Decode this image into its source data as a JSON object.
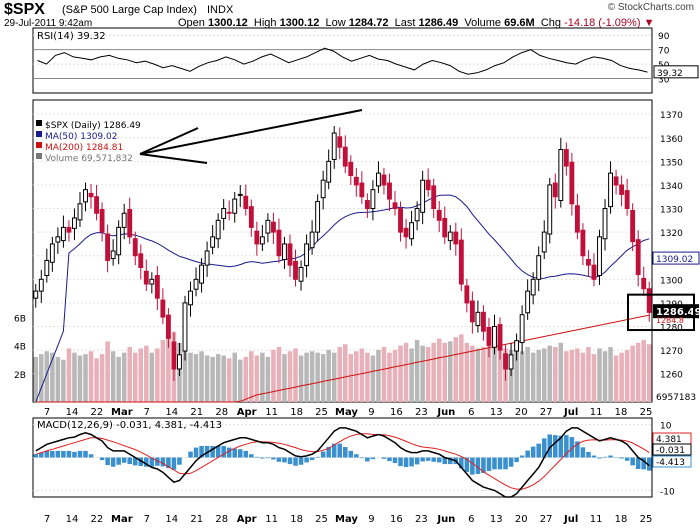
{
  "header": {
    "symbol": "$SPX",
    "name": "(S&P 500 Large Cap Index)",
    "exchange": "INDX",
    "datetime": "29-Jul-2011 9:42am",
    "brand": "© StockCharts.com",
    "open_label": "Open",
    "open": "1300.12",
    "high_label": "High",
    "high": "1300.12",
    "low_label": "Low",
    "low": "1284.72",
    "last_label": "Last",
    "last": "1286.49",
    "volume_label": "Volume",
    "volume": "69.6M",
    "chg_label": "Chg",
    "chg": "-14.18 (-1.09%)"
  },
  "colors": {
    "up": "#000000",
    "down": "#c0103a",
    "ma50": "#1a1a8c",
    "ma200": "#d01010",
    "vol_up": "#b8b8b8",
    "vol_down": "#e8b0b8",
    "macd_hist": "#3a8fcf",
    "signal": "#e02020"
  },
  "chart_data": [
    {
      "type": "line",
      "panel": "RSI",
      "title": "RSI(14) 39.32",
      "y_ticks": [
        30,
        50,
        70,
        90
      ],
      "ylim": [
        10,
        100
      ],
      "last_value_label": "39.32",
      "series": [
        {
          "name": "RSI(14)",
          "values": [
            55,
            50,
            62,
            66,
            60,
            58,
            56,
            60,
            62,
            58,
            56,
            52,
            54,
            50,
            45,
            48,
            44,
            40,
            47,
            52,
            55,
            60,
            56,
            50,
            54,
            60,
            64,
            58,
            52,
            56,
            60,
            66,
            72,
            68,
            60,
            54,
            58,
            62,
            57,
            55,
            50,
            46,
            42,
            50,
            55,
            52,
            48,
            40,
            36,
            38,
            42,
            48,
            52,
            60,
            66,
            70,
            62,
            58,
            55,
            52,
            50,
            56,
            60,
            58,
            55,
            48,
            44,
            42,
            39
          ]
        }
      ]
    },
    {
      "type": "candlestick",
      "panel": "Price",
      "legend": [
        "$SPX (Daily) 1286.49",
        "MA(50) 1309.02",
        "MA(200) 1284.81",
        "Volume 69,571,832"
      ],
      "ylim": [
        1248,
        1376
      ],
      "y_ticks": [
        1260,
        1270,
        1280,
        1290,
        1300,
        1310,
        1320,
        1330,
        1340,
        1350,
        1360,
        1370
      ],
      "last_price_label": "1286.49",
      "ma50_label": "1309.02",
      "ma200_label": "1284.8",
      "x_labels": [
        "7",
        "14",
        "22",
        "Mar",
        "7",
        "14",
        "21",
        "28",
        "Apr",
        "11",
        "18",
        "25",
        "May",
        "9",
        "16",
        "23",
        "Jun",
        "6",
        "13",
        "20",
        "27",
        "Jul",
        "11",
        "18",
        "25"
      ],
      "close": [
        1295,
        1300,
        1308,
        1315,
        1318,
        1322,
        1320,
        1326,
        1332,
        1338,
        1335,
        1328,
        1320,
        1308,
        1312,
        1322,
        1328,
        1318,
        1310,
        1305,
        1298,
        1300,
        1292,
        1284,
        1275,
        1262,
        1268,
        1290,
        1295,
        1300,
        1306,
        1312,
        1318,
        1325,
        1330,
        1328,
        1334,
        1336,
        1330,
        1322,
        1315,
        1318,
        1325,
        1320,
        1310,
        1315,
        1306,
        1300,
        1305,
        1315,
        1320,
        1333,
        1342,
        1350,
        1362,
        1356,
        1348,
        1344,
        1340,
        1335,
        1330,
        1338,
        1345,
        1340,
        1334,
        1330,
        1320,
        1318,
        1324,
        1330,
        1342,
        1338,
        1330,
        1325,
        1318,
        1320,
        1315,
        1298,
        1290,
        1282,
        1286,
        1278,
        1272,
        1280,
        1270,
        1262,
        1268,
        1274,
        1285,
        1295,
        1300,
        1310,
        1320,
        1340,
        1335,
        1355,
        1348,
        1332,
        1320,
        1310,
        1306,
        1300,
        1318,
        1330,
        1345,
        1340,
        1336,
        1330,
        1316,
        1302,
        1296,
        1286
      ],
      "volume_scale_labels": [
        "2B",
        "4B",
        "6B"
      ],
      "volume_last_label": "6957183",
      "volume_billions": [
        3.2,
        3.4,
        3.6,
        3.5,
        3.2,
        3.0,
        3.8,
        3.5,
        3.3,
        3.4,
        3.6,
        3.1,
        3.4,
        4.3,
        3.6,
        3.2,
        3.5,
        3.9,
        3.5,
        3.8,
        4.0,
        3.5,
        3.8,
        4.4,
        4.8,
        5.0,
        4.2,
        3.7,
        3.5,
        3.4,
        3.6,
        3.3,
        3.2,
        3.4,
        3.3,
        3.1,
        3.5,
        3.0,
        3.2,
        3.6,
        3.3,
        3.5,
        3.2,
        3.7,
        3.9,
        3.4,
        3.6,
        3.8,
        3.3,
        3.5,
        3.6,
        3.5,
        3.4,
        3.7,
        3.5,
        3.9,
        4.1,
        3.4,
        3.6,
        3.8,
        3.5,
        3.3,
        3.7,
        3.9,
        3.5,
        3.7,
        4.0,
        4.2,
        3.8,
        4.4,
        4.0,
        3.9,
        4.2,
        4.5,
        4.2,
        4.3,
        4.6,
        4.8,
        4.2,
        4.0,
        3.8,
        3.9,
        4.1,
        4.3,
        4.6,
        3.8,
        3.7,
        4.0,
        3.6,
        3.9,
        3.5,
        3.7,
        3.8,
        4.0,
        3.9,
        4.2,
        3.6,
        3.7,
        3.8,
        3.5,
        3.9,
        3.4,
        3.8,
        3.6,
        3.9,
        3.3,
        3.5,
        3.7,
        4.0,
        4.2,
        4.4,
        4.1
      ]
    },
    {
      "type": "line",
      "panel": "MACD",
      "title": "MACD(12,26,9) -0.031, 4.381, -4.413",
      "ylim": [
        -12,
        12
      ],
      "y_ticks": [
        -10,
        0,
        10
      ],
      "value_labels": [
        "4.381",
        "-0.031",
        "-4.413"
      ],
      "series": [
        {
          "name": "MACD",
          "values": [
            2,
            3,
            4,
            4.5,
            5,
            5.5,
            6,
            6.2,
            7,
            7.5,
            7,
            6,
            5,
            3,
            2,
            2,
            2,
            1,
            0,
            -1,
            -2,
            -3,
            -3.5,
            -4.5,
            -6,
            -7.5,
            -7,
            -5,
            -3,
            -1,
            0.5,
            1.5,
            2.5,
            3.5,
            4.5,
            5,
            5.5,
            6,
            6,
            5.5,
            5,
            4.5,
            4.5,
            4,
            3,
            2.5,
            1.5,
            0.5,
            0.2,
            0.5,
            1,
            2,
            4,
            6,
            8,
            9,
            9,
            8.5,
            8,
            7,
            6,
            6.5,
            7,
            6.5,
            5.5,
            4.5,
            3,
            2,
            1.5,
            1.5,
            2,
            2,
            1.5,
            1,
            0,
            -0.5,
            -1,
            -3,
            -5,
            -7,
            -8,
            -9,
            -9.5,
            -10,
            -11,
            -12,
            -12,
            -11,
            -9,
            -7,
            -5,
            -3,
            0,
            3,
            4.5,
            6,
            8,
            9,
            9,
            8,
            7,
            6,
            5,
            5.5,
            6,
            5.5,
            5,
            4,
            2,
            0,
            -1,
            -2.5
          ]
        },
        {
          "name": "Signal",
          "values": [
            1,
            1.5,
            2,
            2.5,
            3,
            3.5,
            4,
            4.5,
            5,
            5.5,
            6,
            6,
            5.8,
            5.3,
            4.8,
            4.2,
            3.6,
            3,
            2.4,
            1.6,
            0.8,
            -0.2,
            -1,
            -1.8,
            -2.8,
            -3.8,
            -4.8,
            -5,
            -4.8,
            -4,
            -3,
            -2,
            -1,
            0,
            1,
            2,
            2.8,
            3.5,
            4,
            4.5,
            4.8,
            4.8,
            4.7,
            4.6,
            4.3,
            4,
            3.5,
            3,
            2.4,
            2,
            1.8,
            1.8,
            2.2,
            2.8,
            3.8,
            4.8,
            5.8,
            6.5,
            7,
            7.2,
            7.2,
            7,
            7,
            6.9,
            6.6,
            6.2,
            5.6,
            4.9,
            4.2,
            3.6,
            3.2,
            3,
            2.8,
            2.5,
            2,
            1.5,
            1,
            0.3,
            -0.6,
            -1.8,
            -3,
            -4.3,
            -5.4,
            -6.4,
            -7.4,
            -8.4,
            -9.2,
            -9.6,
            -9.6,
            -9.1,
            -8.3,
            -7.2,
            -5.8,
            -4,
            -2.3,
            -0.6,
            1.2,
            2.8,
            4.1,
            4.9,
            5.3,
            5.4,
            5.3,
            5.3,
            5.4,
            5.4,
            5.3,
            5,
            4.4,
            3.5,
            2.6,
            1.5
          ]
        }
      ],
      "x_labels": [
        "7",
        "14",
        "22",
        "Mar",
        "7",
        "14",
        "21",
        "28",
        "Apr",
        "11",
        "18",
        "25",
        "May",
        "9",
        "16",
        "23",
        "Jun",
        "6",
        "13",
        "20",
        "27",
        "Jul",
        "11",
        "18",
        "25"
      ]
    }
  ]
}
